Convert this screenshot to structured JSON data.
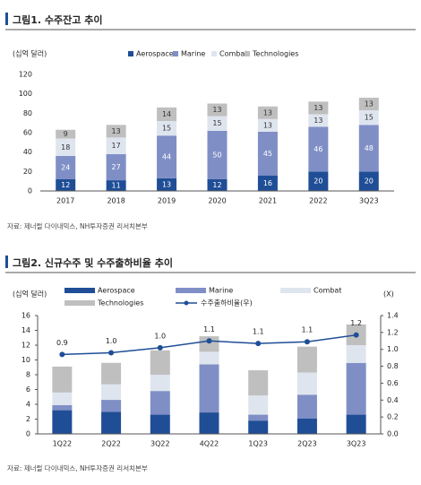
{
  "chart_data": [
    {
      "type": "bar",
      "stacked": true,
      "title": "그림1. 수주잔고 추이",
      "y_label": "(십억 달러)",
      "source": "자료: 제너럴 다이내믹스, NH투자증권 리서치본부",
      "categories": [
        "2017",
        "2018",
        "2019",
        "2020",
        "2021",
        "2022",
        "3Q23"
      ],
      "series": [
        {
          "name": "Aerospace",
          "color": "#1f4e96",
          "values": [
            12,
            11,
            13,
            12,
            16,
            20,
            20
          ]
        },
        {
          "name": "Marine",
          "color": "#7f8fc6",
          "values": [
            24,
            27,
            44,
            50,
            45,
            46,
            48
          ]
        },
        {
          "name": "Combat",
          "color": "#dfe5ef",
          "values": [
            18,
            17,
            15,
            15,
            13,
            13,
            15
          ]
        },
        {
          "name": "Technologies",
          "color": "#bfbfbf",
          "values": [
            9,
            13,
            14,
            13,
            13,
            13,
            13
          ]
        }
      ],
      "ylim": [
        0,
        120
      ],
      "yticks": [
        0,
        20,
        40,
        60,
        80,
        100,
        120
      ],
      "grid": false,
      "show_values": true
    },
    {
      "type": "bar",
      "stacked": true,
      "title": "그림2. 신규수주 및 수주출하비율 추이",
      "y_label": "(십억 달러)",
      "y2_label": "(X)",
      "source": "자료: 제너럴 다이내믹스, NH투자증권 리서치본부",
      "categories": [
        "1Q22",
        "2Q22",
        "3Q22",
        "4Q22",
        "1Q23",
        "2Q23",
        "3Q23"
      ],
      "series": [
        {
          "name": "Aerospace",
          "color": "#1f4e96",
          "values": [
            3.2,
            3.0,
            2.6,
            2.9,
            1.8,
            2.1,
            2.6
          ]
        },
        {
          "name": "Marine",
          "color": "#7f8fc6",
          "values": [
            0.7,
            1.6,
            3.2,
            6.5,
            0.8,
            3.2,
            7.0
          ]
        },
        {
          "name": "Combat",
          "color": "#dfe5ef",
          "values": [
            1.7,
            2.1,
            2.2,
            1.7,
            2.6,
            3.0,
            2.4
          ]
        },
        {
          "name": "Technologies",
          "color": "#bfbfbf",
          "values": [
            3.5,
            2.9,
            3.3,
            2.1,
            3.4,
            3.5,
            2.8
          ]
        },
        {
          "name": "수주출하비율(우)",
          "color": "#1f4e96",
          "type": "line",
          "axis": "y2",
          "values": [
            0.94,
            0.96,
            1.02,
            1.1,
            1.07,
            1.09,
            1.17
          ],
          "value_labels": [
            "0.9",
            "1.0",
            "1.0",
            "1.1",
            "1.1",
            "1.1",
            "1.2"
          ]
        }
      ],
      "ylim": [
        0,
        16
      ],
      "yticks": [
        0,
        2,
        4,
        6,
        8,
        10,
        12,
        14,
        16
      ],
      "y2lim": [
        0,
        1.4
      ],
      "y2ticks": [
        {
          "value": 0,
          "label": "0.0"
        },
        0.2,
        0.4,
        0.6,
        0.8,
        {
          "value": 1,
          "label": "1.0"
        },
        1.2,
        1.4
      ],
      "grid": false,
      "show_values": false
    }
  ]
}
